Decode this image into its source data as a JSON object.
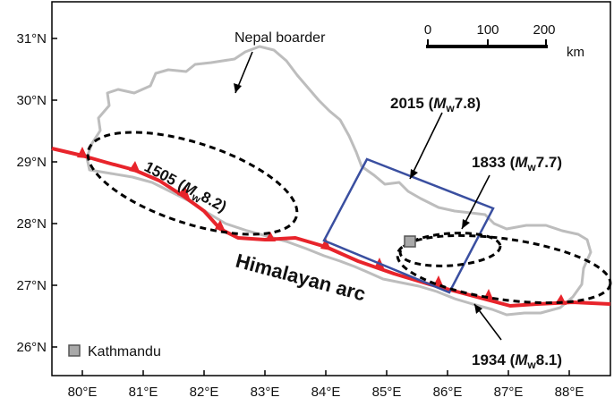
{
  "map": {
    "x_ticks": [
      "80°E",
      "81°E",
      "82°E",
      "83°E",
      "84°E",
      "85°E",
      "86°E",
      "87°E",
      "88°E"
    ],
    "y_ticks": [
      "31°N",
      "30°N",
      "29°N",
      "28°N",
      "27°N",
      "26°N"
    ],
    "border_label": "Nepal boarder",
    "arc_label": "Himalayan arc",
    "legend_label": "Kathmandu",
    "scale": {
      "ticks": [
        "0",
        "100",
        "200"
      ],
      "unit": "km"
    },
    "events": {
      "e2015": {
        "year": "2015",
        "m_open": "(",
        "m_sym": "M",
        "m_sub": "w",
        "mag": "7.8)"
      },
      "e1833": {
        "year": "1833",
        "m_open": "(",
        "m_sym": "M",
        "m_sub": "w",
        "mag": "7.7)"
      },
      "e1934": {
        "year": "1934",
        "m_open": "(",
        "m_sym": "M",
        "m_sub": "w",
        "mag": "8.1)"
      },
      "e1505": {
        "year": "1505",
        "m_open": "(",
        "m_sym": "M",
        "m_sub": "w",
        "mag": "8.2)"
      }
    },
    "colors": {
      "thrust": "#e8242b",
      "border": "#bdbdbd",
      "rupture_box": "#3a4fa0",
      "ellipse": "#000000",
      "kathmandu": "#a9a9a9"
    }
  }
}
